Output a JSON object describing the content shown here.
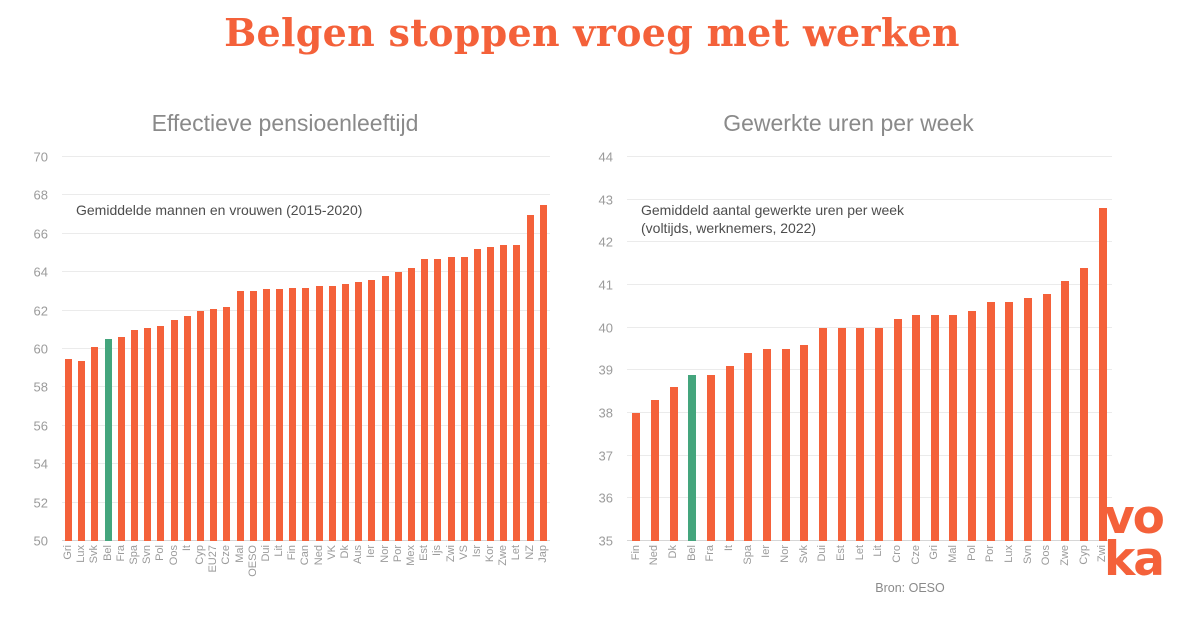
{
  "page": {
    "title": "Belgen stoppen vroeg met werken",
    "source": "Bron: OESO",
    "logo": {
      "line1": "vo",
      "line2": "ka"
    }
  },
  "colors": {
    "accent": "#F4613A",
    "highlight": "#44A57D",
    "title_text": "#F4613A",
    "chart_title_text": "#8a8a8a",
    "axis_text": "#9b9b9b",
    "annotation_text": "#4d4d4d",
    "gridline": "#ebebeb"
  },
  "chart_data": [
    {
      "type": "bar",
      "title": "Effectieve pensioenleeftijd",
      "annotation_lines": [
        "Gemiddelde mannen en vrouwen (2015-2020)"
      ],
      "xlabel": "",
      "ylabel": "",
      "ylim": [
        50,
        70
      ],
      "ytick_step": 2,
      "grid": "horizontal-light",
      "legend": "none",
      "highlight_category": "Bel",
      "categories": [
        "Gri",
        "Lux",
        "Svk",
        "Bel",
        "Fra",
        "Spa",
        "Svn",
        "Pol",
        "Oos",
        "It",
        "Cyp",
        "EU27",
        "Cze",
        "Mal",
        "OESO",
        "Dui",
        "Lit",
        "Fin",
        "Can",
        "Ned",
        "VK",
        "Dk",
        "Aus",
        "Ier",
        "Nor",
        "Por",
        "Mex",
        "Est",
        "Ijs",
        "Zwi",
        "VS",
        "Isr",
        "Kor",
        "Zwe",
        "Let",
        "NZ",
        "Jap"
      ],
      "values": [
        59.5,
        59.4,
        60.1,
        60.5,
        60.6,
        61.0,
        61.1,
        61.2,
        61.5,
        61.7,
        62.0,
        62.1,
        62.2,
        63.0,
        63.0,
        63.1,
        63.1,
        63.2,
        63.2,
        63.3,
        63.3,
        63.4,
        63.5,
        63.6,
        63.8,
        64.0,
        64.2,
        64.7,
        64.7,
        64.8,
        64.8,
        65.2,
        65.3,
        65.4,
        65.4,
        67.0,
        67.5
      ]
    },
    {
      "type": "bar",
      "title": "Gewerkte uren per week",
      "annotation_lines": [
        "Gemiddeld aantal gewerkte uren per week",
        "(voltijds, werknemers, 2022)"
      ],
      "xlabel": "",
      "ylabel": "",
      "ylim": [
        35,
        44
      ],
      "ytick_step": 1,
      "grid": "horizontal-light",
      "legend": "none",
      "highlight_category": "Bel",
      "categories": [
        "Fin",
        "Ned",
        "Dk",
        "Bel",
        "Fra",
        "It",
        "Spa",
        "Ier",
        "Nor",
        "Svk",
        "Dui",
        "Est",
        "Let",
        "Lit",
        "Cro",
        "Cze",
        "Gri",
        "Mal",
        "Pol",
        "Por",
        "Lux",
        "Svn",
        "Oos",
        "Zwe",
        "Cyp",
        "Zwi"
      ],
      "values": [
        38.0,
        38.3,
        38.6,
        38.9,
        38.9,
        39.1,
        39.4,
        39.5,
        39.5,
        39.6,
        40.0,
        40.0,
        40.0,
        40.0,
        40.2,
        40.3,
        40.3,
        40.3,
        40.4,
        40.6,
        40.6,
        40.7,
        40.8,
        41.1,
        41.4,
        42.8
      ]
    }
  ]
}
